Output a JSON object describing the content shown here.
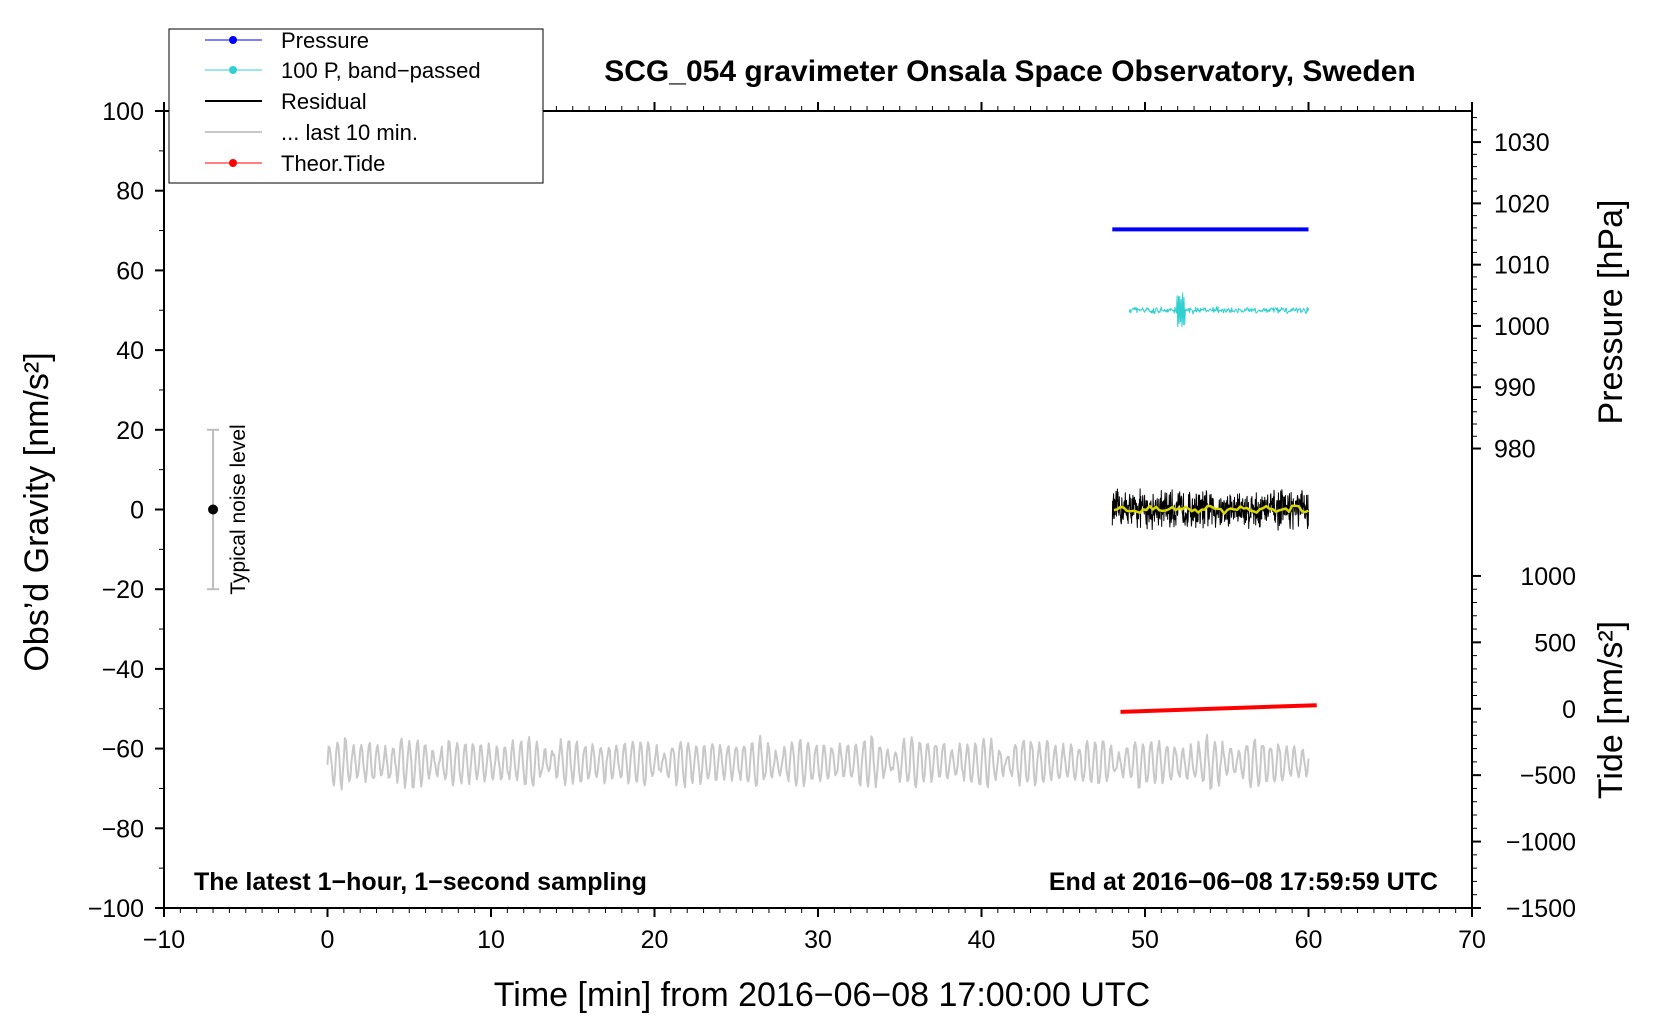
{
  "chart_data": {
    "type": "line",
    "title": "SCG_054 gravimeter Onsala Space Observatory, Sweden",
    "xlabel": "Time [min] from 2016−06−08 17:00:00 UTC",
    "ylabel_left": "Obs’d Gravity [nm/s²]",
    "ylabel_right_top": "Pressure [hPa]",
    "ylabel_right_bottom": "Tide [nm/s²]",
    "xlim": [
      -10,
      70
    ],
    "ylim": [
      -100,
      100
    ],
    "x_ticks": [
      -10,
      0,
      10,
      20,
      30,
      40,
      50,
      60,
      70
    ],
    "x_tick_labels": [
      "−10",
      "0",
      "10",
      "20",
      "30",
      "40",
      "50",
      "60",
      "70"
    ],
    "y_ticks": [
      100,
      80,
      60,
      40,
      20,
      0,
      -20,
      -40,
      -60,
      -80,
      -100
    ],
    "y_tick_labels": [
      "100",
      "80",
      "60",
      "40",
      "20",
      "0",
      "−20",
      "−40",
      "−60",
      "−80",
      "−100"
    ],
    "pressure_axis": {
      "ticks": [
        1030,
        1020,
        1010,
        1000,
        990,
        980
      ],
      "tick_labels": [
        "1030",
        "1020",
        "1010",
        "1000",
        "990",
        "980"
      ],
      "gravity_equiv_at_1030": 92.2,
      "gravity_per_hPa": 1.538
    },
    "tide_axis": {
      "ticks": [
        1000,
        500,
        0,
        -500,
        -1000,
        -1500
      ],
      "tick_labels": [
        "1000",
        "500",
        "0",
        "−500",
        "−1000",
        "−1500"
      ],
      "gravity_equiv_at_0": -50,
      "gravity_per_nm_s2": 0.03333
    },
    "series": [
      {
        "name": "Pressure",
        "color": "#0000ff",
        "kind": "flat",
        "x_range": [
          48,
          60
        ],
        "value": 70.3
      },
      {
        "name": "100 P, band−passed",
        "color": "#30d0d0",
        "kind": "noise",
        "x_range": [
          49,
          60
        ],
        "center": 50,
        "amplitude": 1.0,
        "spike_at": 52.2,
        "spike_amp": 4.5
      },
      {
        "name": "Residual",
        "color": "#000000",
        "kind": "noise",
        "x_range": [
          48,
          60
        ],
        "center": 0,
        "amplitude": 5.5
      },
      {
        "name": "Residual smoothed",
        "color": "#d8d800",
        "kind": "flat",
        "x_range": [
          48.1,
          60
        ],
        "value": 0,
        "in_legend": false
      },
      {
        "name": "... last 10 min.",
        "color": "#c8c8c8",
        "kind": "oscillation",
        "x_range": [
          0,
          60
        ],
        "center": -63.5,
        "amplitude": 5.5
      },
      {
        "name": "Theor.Tide",
        "color": "#ff0000",
        "kind": "linear",
        "x_range": [
          48.5,
          60.5
        ],
        "y_start": -50.8,
        "y_end": -49.1
      }
    ],
    "noise_bar": {
      "label": "Typical noise level",
      "x": -7,
      "y": 0,
      "low": -20,
      "high": 20
    },
    "annotations": {
      "bottom_left": "The latest 1−hour, 1−second sampling",
      "bottom_right": "End at 2016−06−08 17:59:59 UTC"
    },
    "legend": {
      "placement": "top-left",
      "entries": [
        "Pressure",
        "100 P, band−passed",
        "Residual",
        "... last 10 min.",
        "Theor.Tide"
      ]
    }
  }
}
